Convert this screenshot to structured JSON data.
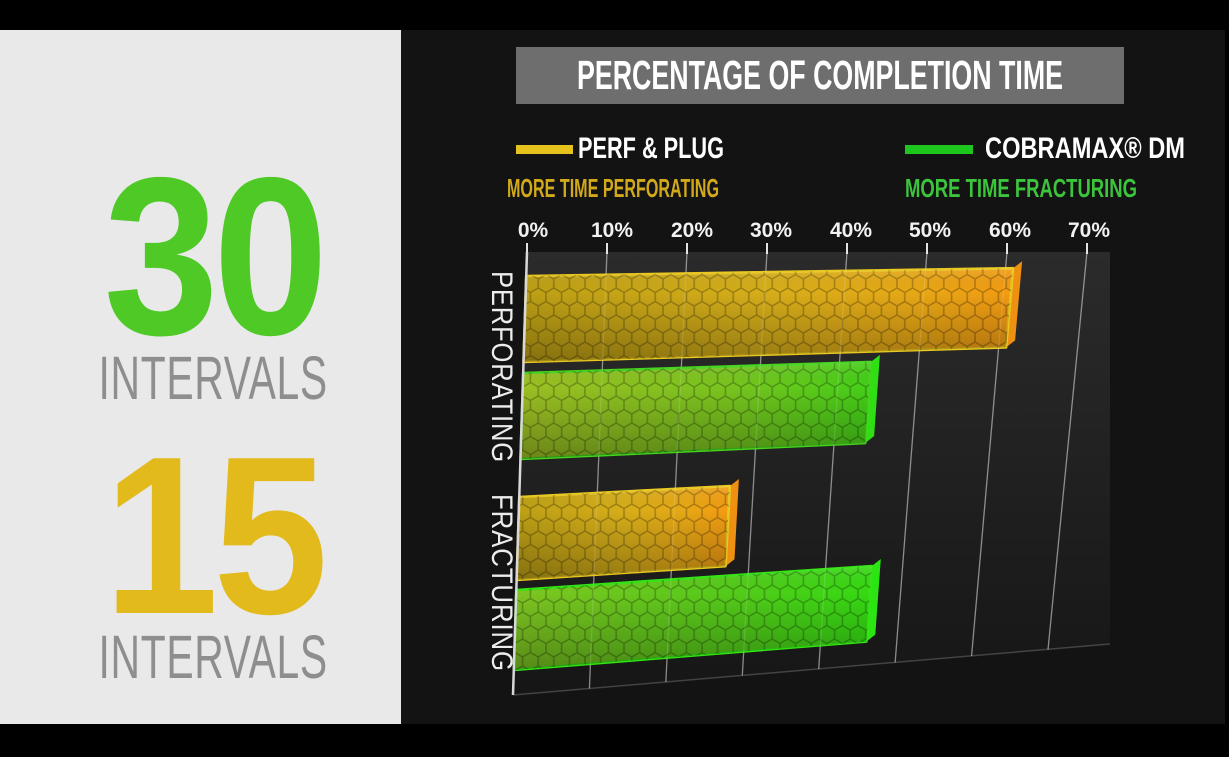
{
  "slide": {
    "left_panel": {
      "background": "#e9e9e9",
      "items": [
        {
          "value": "30",
          "label": "INTERVALS",
          "color": "#4ec926"
        },
        {
          "value": "15",
          "label": "INTERVALS",
          "color": "#e2ba1c"
        }
      ]
    }
  },
  "chart_data": {
    "type": "bar",
    "orientation": "horizontal",
    "title": "PERCENTAGE OF COMPLETION TIME",
    "categories": [
      "PERFORATING",
      "FRACTURING"
    ],
    "series": [
      {
        "name": "PERF & PLUG",
        "tagline": "MORE TIME PERFORATING",
        "color": "#e6c31c",
        "tagline_color": "#d2a91b",
        "values": [
          61,
          27
        ]
      },
      {
        "name": "COBRAMAX® DM",
        "tagline": "MORE TIME FRACTURING",
        "color": "#1ec71e",
        "tagline_color": "#3cc43c",
        "values": [
          44,
          46
        ]
      }
    ],
    "x_ticks": [
      "0%",
      "10%",
      "20%",
      "30%",
      "40%",
      "50%",
      "60%",
      "70%"
    ],
    "xlim": [
      0,
      70
    ],
    "units": "%",
    "grid": "vertical",
    "legend_position": "top"
  }
}
